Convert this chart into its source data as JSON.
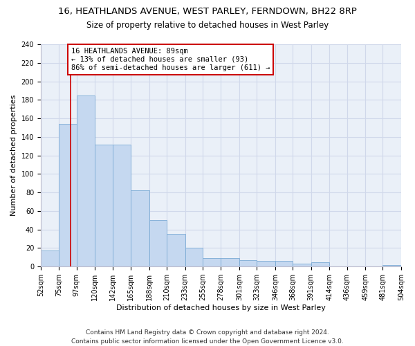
{
  "title_line1": "16, HEATHLANDS AVENUE, WEST PARLEY, FERNDOWN, BH22 8RP",
  "title_line2": "Size of property relative to detached houses in West Parley",
  "xlabel": "Distribution of detached houses by size in West Parley",
  "ylabel": "Number of detached properties",
  "bar_color": "#c5d8f0",
  "bar_edge_color": "#7aaad4",
  "bins": [
    52,
    75,
    97,
    120,
    142,
    165,
    188,
    210,
    233,
    255,
    278,
    301,
    323,
    346,
    368,
    391,
    414,
    436,
    459,
    481,
    504
  ],
  "bin_labels": [
    "52sqm",
    "75sqm",
    "97sqm",
    "120sqm",
    "142sqm",
    "165sqm",
    "188sqm",
    "210sqm",
    "233sqm",
    "255sqm",
    "278sqm",
    "301sqm",
    "323sqm",
    "346sqm",
    "368sqm",
    "391sqm",
    "414sqm",
    "436sqm",
    "459sqm",
    "481sqm",
    "504sqm"
  ],
  "bar_heights": [
    17,
    154,
    185,
    132,
    132,
    82,
    50,
    35,
    20,
    9,
    9,
    7,
    6,
    6,
    3,
    5,
    0,
    0,
    0,
    2
  ],
  "property_line_x": 89,
  "property_line_color": "#cc0000",
  "annotation_text": "16 HEATHLANDS AVENUE: 89sqm\n← 13% of detached houses are smaller (93)\n86% of semi-detached houses are larger (611) →",
  "annotation_box_color": "white",
  "annotation_box_edge_color": "#cc0000",
  "ylim": [
    0,
    240
  ],
  "yticks": [
    0,
    20,
    40,
    60,
    80,
    100,
    120,
    140,
    160,
    180,
    200,
    220,
    240
  ],
  "grid_color": "#d0d8ea",
  "background_color": "#eaf0f8",
  "footer_text": "Contains HM Land Registry data © Crown copyright and database right 2024.\nContains public sector information licensed under the Open Government Licence v3.0.",
  "title_fontsize": 9.5,
  "subtitle_fontsize": 8.5,
  "xlabel_fontsize": 8,
  "ylabel_fontsize": 8,
  "tick_fontsize": 7,
  "annotation_fontsize": 7.5,
  "footer_fontsize": 6.5
}
